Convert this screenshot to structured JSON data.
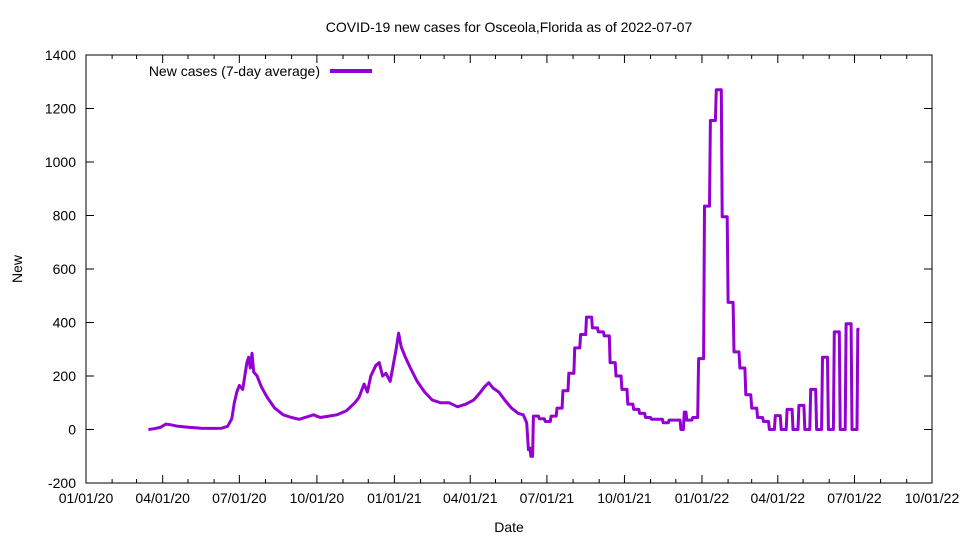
{
  "chart_data": {
    "type": "line",
    "title": "COVID-19 new cases for Osceola,Florida as of 2022-07-07",
    "xlabel": "Date",
    "ylabel": "New",
    "xlim": [
      "2020-01-01",
      "2022-10-01"
    ],
    "ylim": [
      -200,
      1400
    ],
    "grid": false,
    "legend_position": "top-left",
    "x_ticks": [
      "2020-01-01",
      "2020-04-01",
      "2020-07-01",
      "2020-10-01",
      "2021-01-01",
      "2021-04-01",
      "2021-07-01",
      "2021-10-01",
      "2022-01-01",
      "2022-04-01",
      "2022-07-01",
      "2022-10-01"
    ],
    "x_tick_labels": [
      "01/01/20",
      "04/01/20",
      "07/01/20",
      "10/01/20",
      "01/01/21",
      "04/01/21",
      "07/01/21",
      "10/01/21",
      "01/01/22",
      "04/01/22",
      "07/01/22",
      "10/01/22"
    ],
    "y_ticks": [
      -200,
      0,
      200,
      400,
      600,
      800,
      1000,
      1200,
      1400
    ],
    "series": [
      {
        "name": "New cases (7-day average)",
        "color": "#9400d3",
        "points": [
          [
            "2020-03-15",
            0
          ],
          [
            "2020-03-22",
            3
          ],
          [
            "2020-03-29",
            8
          ],
          [
            "2020-04-05",
            20
          ],
          [
            "2020-04-10",
            18
          ],
          [
            "2020-04-19",
            12
          ],
          [
            "2020-05-03",
            8
          ],
          [
            "2020-05-17",
            5
          ],
          [
            "2020-05-31",
            4
          ],
          [
            "2020-06-10",
            5
          ],
          [
            "2020-06-17",
            12
          ],
          [
            "2020-06-22",
            40
          ],
          [
            "2020-06-25",
            100
          ],
          [
            "2020-06-28",
            140
          ],
          [
            "2020-07-01",
            165
          ],
          [
            "2020-07-05",
            150
          ],
          [
            "2020-07-10",
            250
          ],
          [
            "2020-07-12",
            270
          ],
          [
            "2020-07-14",
            230
          ],
          [
            "2020-07-16",
            285
          ],
          [
            "2020-07-18",
            215
          ],
          [
            "2020-07-22",
            200
          ],
          [
            "2020-07-27",
            160
          ],
          [
            "2020-08-03",
            120
          ],
          [
            "2020-08-12",
            80
          ],
          [
            "2020-08-22",
            55
          ],
          [
            "2020-09-01",
            45
          ],
          [
            "2020-09-10",
            38
          ],
          [
            "2020-09-20",
            48
          ],
          [
            "2020-09-27",
            55
          ],
          [
            "2020-10-05",
            45
          ],
          [
            "2020-10-15",
            50
          ],
          [
            "2020-10-25",
            55
          ],
          [
            "2020-11-05",
            70
          ],
          [
            "2020-11-15",
            100
          ],
          [
            "2020-11-20",
            120
          ],
          [
            "2020-11-26",
            170
          ],
          [
            "2020-11-30",
            140
          ],
          [
            "2020-12-04",
            200
          ],
          [
            "2020-12-10",
            240
          ],
          [
            "2020-12-14",
            250
          ],
          [
            "2020-12-18",
            200
          ],
          [
            "2020-12-22",
            210
          ],
          [
            "2020-12-27",
            180
          ],
          [
            "2020-12-30",
            230
          ],
          [
            "2021-01-03",
            300
          ],
          [
            "2021-01-06",
            360
          ],
          [
            "2021-01-09",
            310
          ],
          [
            "2021-01-14",
            270
          ],
          [
            "2021-01-20",
            230
          ],
          [
            "2021-01-28",
            180
          ],
          [
            "2021-02-06",
            140
          ],
          [
            "2021-02-15",
            110
          ],
          [
            "2021-02-25",
            100
          ],
          [
            "2021-03-07",
            100
          ],
          [
            "2021-03-17",
            85
          ],
          [
            "2021-03-27",
            95
          ],
          [
            "2021-04-05",
            110
          ],
          [
            "2021-04-12",
            135
          ],
          [
            "2021-04-18",
            160
          ],
          [
            "2021-04-23",
            175
          ],
          [
            "2021-04-28",
            155
          ],
          [
            "2021-05-05",
            140
          ],
          [
            "2021-05-12",
            110
          ],
          [
            "2021-05-20",
            80
          ],
          [
            "2021-05-28",
            60
          ],
          [
            "2021-06-03",
            55
          ],
          [
            "2021-06-07",
            25
          ],
          [
            "2021-06-09",
            -75
          ],
          [
            "2021-06-11",
            -70
          ],
          [
            "2021-06-12",
            -100
          ],
          [
            "2021-06-14",
            -100
          ],
          [
            "2021-06-15",
            50
          ],
          [
            "2021-06-21",
            50
          ],
          [
            "2021-06-22",
            40
          ],
          [
            "2021-06-28",
            40
          ],
          [
            "2021-06-29",
            30
          ],
          [
            "2021-07-05",
            30
          ],
          [
            "2021-07-06",
            50
          ],
          [
            "2021-07-12",
            50
          ],
          [
            "2021-07-13",
            80
          ],
          [
            "2021-07-19",
            80
          ],
          [
            "2021-07-20",
            145
          ],
          [
            "2021-07-26",
            145
          ],
          [
            "2021-07-27",
            210
          ],
          [
            "2021-08-02",
            210
          ],
          [
            "2021-08-03",
            305
          ],
          [
            "2021-08-09",
            305
          ],
          [
            "2021-08-10",
            355
          ],
          [
            "2021-08-16",
            355
          ],
          [
            "2021-08-17",
            420
          ],
          [
            "2021-08-23",
            420
          ],
          [
            "2021-08-24",
            380
          ],
          [
            "2021-08-30",
            380
          ],
          [
            "2021-08-31",
            365
          ],
          [
            "2021-09-06",
            365
          ],
          [
            "2021-09-07",
            350
          ],
          [
            "2021-09-13",
            350
          ],
          [
            "2021-09-14",
            250
          ],
          [
            "2021-09-20",
            250
          ],
          [
            "2021-09-21",
            200
          ],
          [
            "2021-09-27",
            200
          ],
          [
            "2021-09-28",
            150
          ],
          [
            "2021-10-04",
            150
          ],
          [
            "2021-10-05",
            95
          ],
          [
            "2021-10-11",
            95
          ],
          [
            "2021-10-12",
            75
          ],
          [
            "2021-10-18",
            75
          ],
          [
            "2021-10-19",
            60
          ],
          [
            "2021-10-25",
            60
          ],
          [
            "2021-10-26",
            45
          ],
          [
            "2021-11-01",
            45
          ],
          [
            "2021-11-02",
            38
          ],
          [
            "2021-11-15",
            38
          ],
          [
            "2021-11-16",
            25
          ],
          [
            "2021-11-22",
            25
          ],
          [
            "2021-11-23",
            35
          ],
          [
            "2021-12-06",
            35
          ],
          [
            "2021-12-07",
            0
          ],
          [
            "2021-12-10",
            0
          ],
          [
            "2021-12-11",
            65
          ],
          [
            "2021-12-13",
            65
          ],
          [
            "2021-12-14",
            35
          ],
          [
            "2021-12-20",
            35
          ],
          [
            "2021-12-21",
            45
          ],
          [
            "2021-12-27",
            45
          ],
          [
            "2021-12-28",
            265
          ],
          [
            "2022-01-03",
            265
          ],
          [
            "2022-01-04",
            835
          ],
          [
            "2022-01-10",
            835
          ],
          [
            "2022-01-11",
            1155
          ],
          [
            "2022-01-17",
            1155
          ],
          [
            "2022-01-18",
            1270
          ],
          [
            "2022-01-24",
            1270
          ],
          [
            "2022-01-25",
            795
          ],
          [
            "2022-01-31",
            795
          ],
          [
            "2022-02-01",
            475
          ],
          [
            "2022-02-07",
            475
          ],
          [
            "2022-02-08",
            290
          ],
          [
            "2022-02-14",
            290
          ],
          [
            "2022-02-15",
            230
          ],
          [
            "2022-02-21",
            230
          ],
          [
            "2022-02-22",
            130
          ],
          [
            "2022-02-28",
            130
          ],
          [
            "2022-03-01",
            80
          ],
          [
            "2022-03-07",
            80
          ],
          [
            "2022-03-08",
            45
          ],
          [
            "2022-03-14",
            45
          ],
          [
            "2022-03-15",
            30
          ],
          [
            "2022-03-21",
            30
          ],
          [
            "2022-03-22",
            0
          ],
          [
            "2022-03-28",
            0
          ],
          [
            "2022-03-29",
            52
          ],
          [
            "2022-04-04",
            52
          ],
          [
            "2022-04-05",
            0
          ],
          [
            "2022-04-11",
            0
          ],
          [
            "2022-04-12",
            75
          ],
          [
            "2022-04-18",
            75
          ],
          [
            "2022-04-19",
            0
          ],
          [
            "2022-04-25",
            0
          ],
          [
            "2022-04-26",
            90
          ],
          [
            "2022-05-02",
            90
          ],
          [
            "2022-05-03",
            0
          ],
          [
            "2022-05-09",
            0
          ],
          [
            "2022-05-10",
            150
          ],
          [
            "2022-05-16",
            150
          ],
          [
            "2022-05-17",
            0
          ],
          [
            "2022-05-23",
            0
          ],
          [
            "2022-05-24",
            270
          ],
          [
            "2022-05-30",
            270
          ],
          [
            "2022-05-31",
            0
          ],
          [
            "2022-06-06",
            0
          ],
          [
            "2022-06-07",
            365
          ],
          [
            "2022-06-13",
            365
          ],
          [
            "2022-06-14",
            0
          ],
          [
            "2022-06-20",
            0
          ],
          [
            "2022-06-21",
            395
          ],
          [
            "2022-06-27",
            395
          ],
          [
            "2022-06-28",
            0
          ],
          [
            "2022-07-04",
            0
          ],
          [
            "2022-07-05",
            375
          ],
          [
            "2022-07-07",
            375
          ]
        ]
      }
    ]
  }
}
